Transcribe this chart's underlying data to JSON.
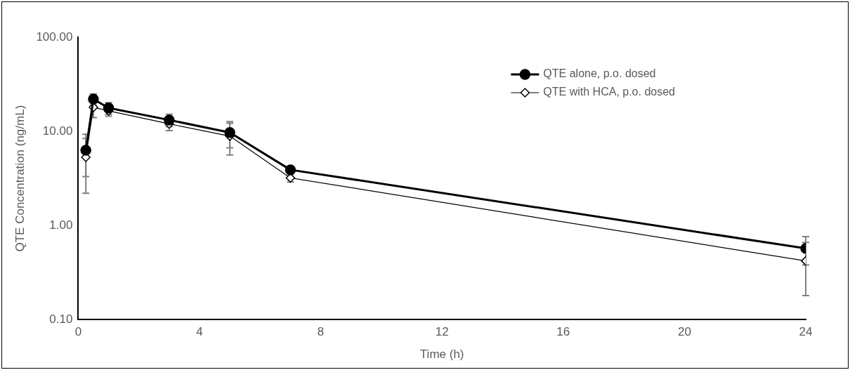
{
  "chart_data": {
    "type": "line",
    "xlabel": "Time (h)",
    "ylabel": "QTE Concentration (ng/mL)",
    "log": "y",
    "xlim": [
      0,
      24
    ],
    "xticks": [
      0,
      4,
      8,
      12,
      16,
      20,
      24
    ],
    "ylim": [
      0.1,
      100
    ],
    "yticks": [
      {
        "value": 0.1,
        "label": "0.10"
      },
      {
        "value": 1,
        "label": "1.00"
      },
      {
        "value": 10,
        "label": "10.00"
      },
      {
        "value": 100,
        "label": "100.00"
      }
    ],
    "grid": false,
    "legend": "top right",
    "x": [
      0.25,
      0.5,
      1,
      3,
      5,
      7,
      24
    ],
    "series": [
      {
        "name": "QTE alone, p.o. dosed",
        "color": "#000000",
        "marker": "circle",
        "values": [
          6.3,
          22,
          17.7,
          13.2,
          9.7,
          3.9,
          0.57
        ],
        "errors": [
          3,
          3,
          2.5,
          2,
          3,
          0.3,
          0.19
        ]
      },
      {
        "name": "QTE with HCA, p.o. dosed",
        "color": "#000000",
        "marker": "diamond",
        "values": [
          5.3,
          18,
          16.5,
          12,
          8.9,
          3.2,
          0.42
        ],
        "errors": [
          3.1,
          4,
          2,
          1.8,
          3.3,
          0.3,
          0.24
        ]
      }
    ]
  }
}
